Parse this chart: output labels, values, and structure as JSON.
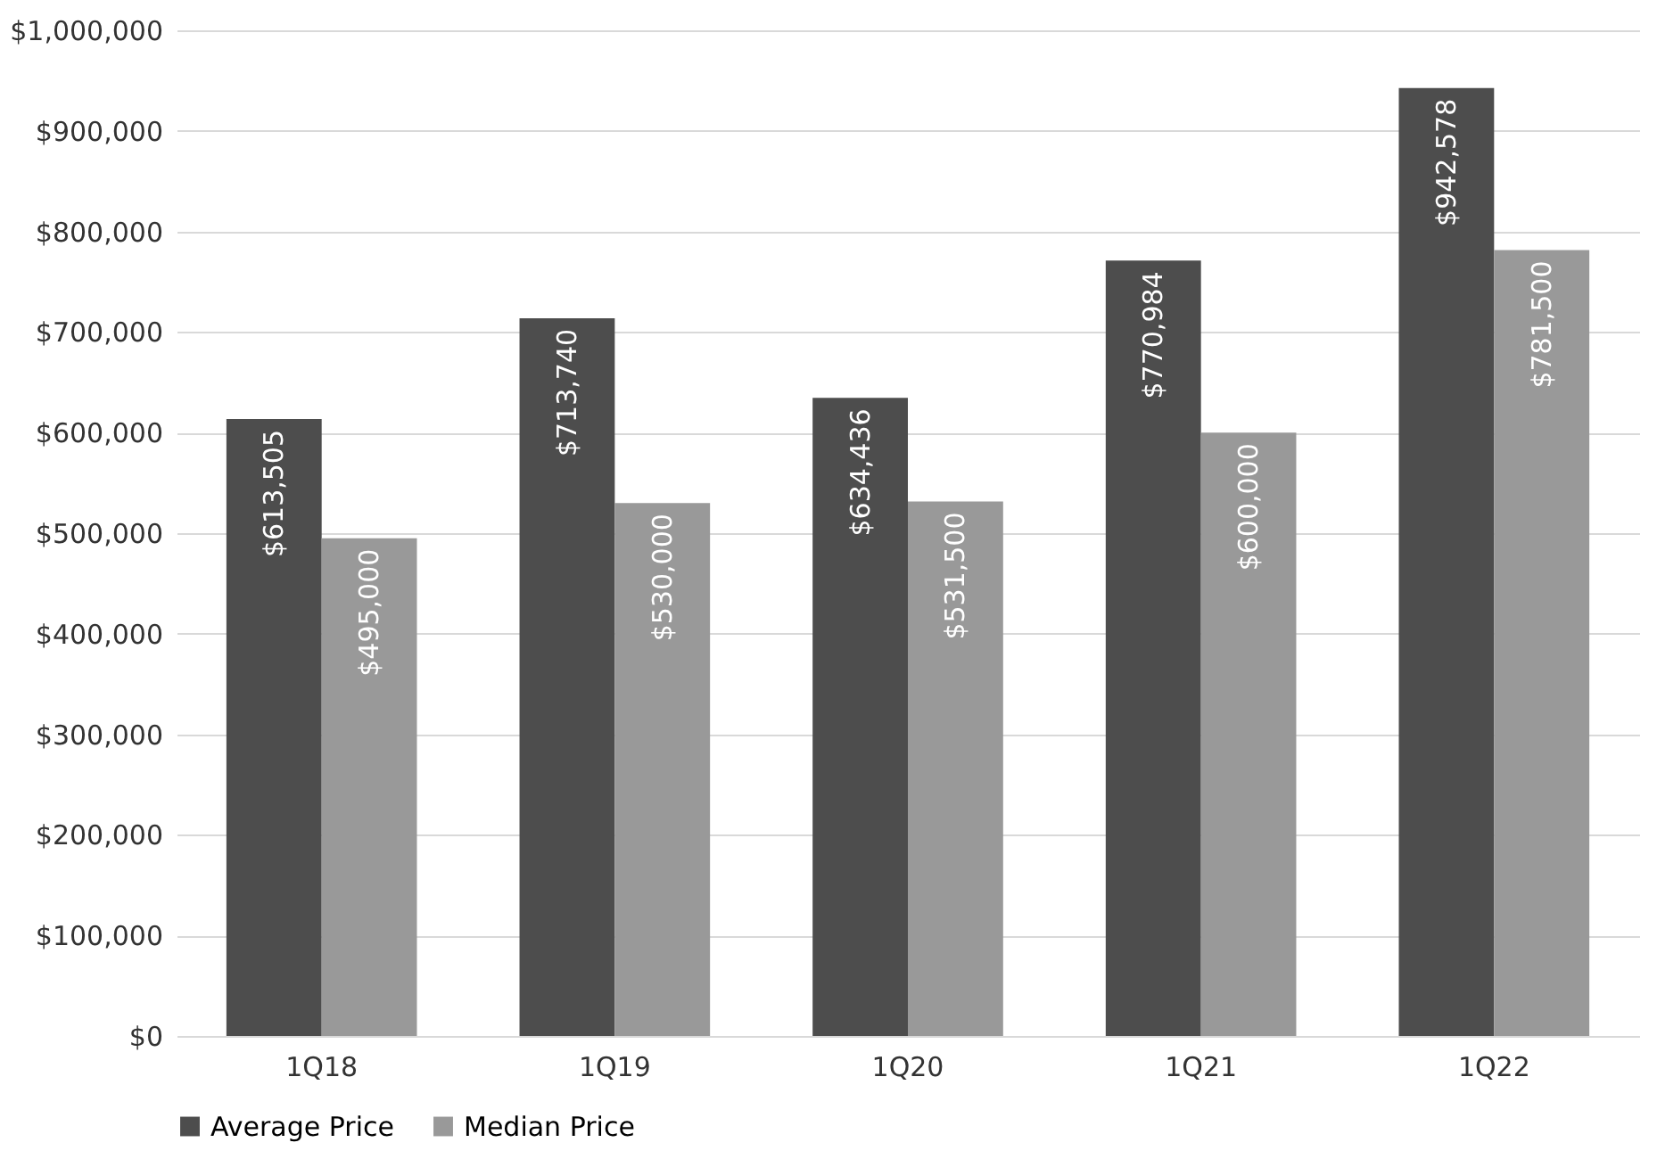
{
  "chart_data": {
    "type": "bar",
    "categories": [
      "1Q18",
      "1Q19",
      "1Q20",
      "1Q21",
      "1Q22"
    ],
    "series": [
      {
        "name": "Average Price",
        "color": "#4d4d4d",
        "values": [
          613505,
          713740,
          634436,
          770984,
          942578
        ],
        "value_labels": [
          "$613,505",
          "$713,740",
          "$634,436",
          "$770,984",
          "$942,578"
        ]
      },
      {
        "name": "Median Price",
        "color": "#999999",
        "values": [
          495000,
          530000,
          531500,
          600000,
          781500
        ],
        "value_labels": [
          "$495,000",
          "$530,000",
          "$531,500",
          "$600,000",
          "$781,500"
        ]
      }
    ],
    "ylim": [
      0,
      1000000
    ],
    "yticks": [
      {
        "value": 0,
        "label": "$0"
      },
      {
        "value": 100000,
        "label": "$100,000"
      },
      {
        "value": 200000,
        "label": "$200,000"
      },
      {
        "value": 300000,
        "label": "$300,000"
      },
      {
        "value": 400000,
        "label": "$400,000"
      },
      {
        "value": 500000,
        "label": "$500,000"
      },
      {
        "value": 600000,
        "label": "$600,000"
      },
      {
        "value": 700000,
        "label": "$700,000"
      },
      {
        "value": 800000,
        "label": "$800,000"
      },
      {
        "value": 900000,
        "label": "$900,000"
      },
      {
        "value": 1000000,
        "label": "$1,000,000"
      }
    ],
    "grid": "y",
    "legend": "bottom"
  }
}
